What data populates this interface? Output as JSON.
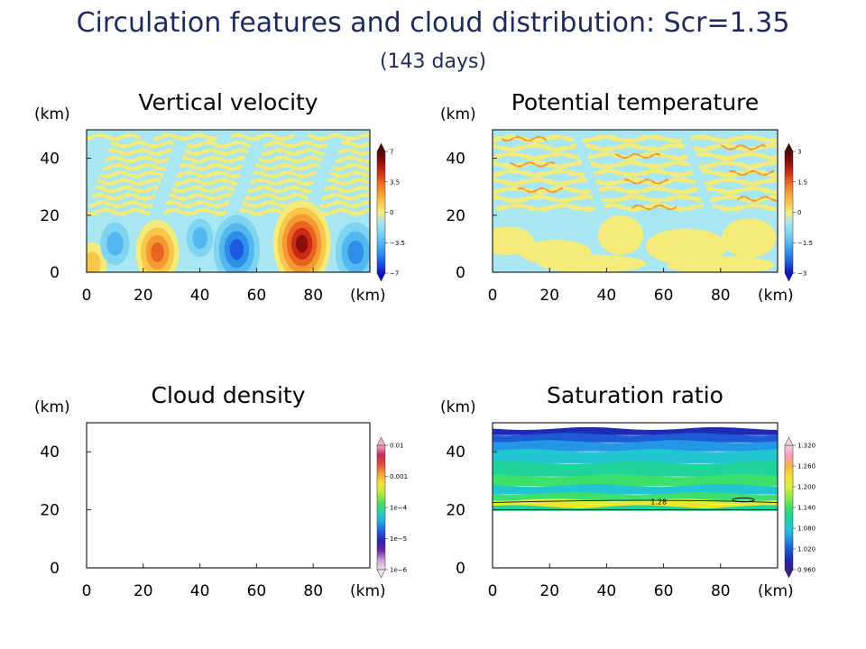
{
  "title": "Circulation features and cloud distribution: Scr=1.35",
  "subtitle": "(143 days)",
  "chart_data": [
    {
      "type": "heatmap",
      "title": "Vertical velocity",
      "xlabel": "(km)",
      "ylabel": "(km)",
      "xlim": [
        0,
        100
      ],
      "ylim": [
        0,
        50
      ],
      "xticks": [
        "0",
        "20",
        "40",
        "60",
        "80"
      ],
      "xtick_values": [
        0,
        20,
        40,
        60,
        80
      ],
      "yticks": [
        "0",
        "20",
        "40"
      ],
      "ytick_values": [
        0,
        20,
        40
      ],
      "colorbar": {
        "min": -7,
        "max": 7,
        "labels": [
          "7",
          "3.5",
          "0",
          "−3.5",
          "−7"
        ],
        "label_values": [
          7,
          3.5,
          0,
          -3.5,
          -7
        ]
      },
      "features": [
        {
          "kind": "updraft",
          "x": 25,
          "y": 7,
          "value": 4.5
        },
        {
          "kind": "updraft",
          "x": 76,
          "y": 10,
          "value": 7
        },
        {
          "kind": "updraft",
          "x": 2,
          "y": 3,
          "value": 2
        },
        {
          "kind": "downdraft",
          "x": 53,
          "y": 8,
          "value": -5
        },
        {
          "kind": "downdraft",
          "x": 95,
          "y": 7,
          "value": -4
        },
        {
          "kind": "downdraft",
          "x": 10,
          "y": 10,
          "value": -2
        },
        {
          "kind": "downdraft",
          "x": 40,
          "y": 12,
          "value": -1.5
        }
      ]
    },
    {
      "type": "heatmap",
      "title": "Potential temperature",
      "xlabel": "(km)",
      "ylabel": "(km)",
      "xlim": [
        0,
        100
      ],
      "ylim": [
        0,
        50
      ],
      "xticks": [
        "0",
        "20",
        "40",
        "60",
        "80"
      ],
      "xtick_values": [
        0,
        20,
        40,
        60,
        80
      ],
      "yticks": [
        "0",
        "20",
        "40"
      ],
      "ytick_values": [
        0,
        20,
        40
      ],
      "colorbar": {
        "min": -3,
        "max": 3,
        "labels": [
          "3",
          "1.5",
          "0",
          "−1.5",
          "−3"
        ],
        "label_values": [
          3,
          1.5,
          0,
          -1.5,
          -3
        ]
      }
    },
    {
      "type": "heatmap",
      "title": "Cloud density",
      "xlabel": "(km)",
      "ylabel": "(km)",
      "xlim": [
        0,
        100
      ],
      "ylim": [
        0,
        50
      ],
      "xticks": [
        "0",
        "20",
        "40",
        "60",
        "80"
      ],
      "xtick_values": [
        0,
        20,
        40,
        60,
        80
      ],
      "yticks": [
        "0",
        "20",
        "40"
      ],
      "ytick_values": [
        0,
        20,
        40
      ],
      "colorbar": {
        "scale": "log",
        "min": 1e-06,
        "max": 0.01,
        "labels": [
          "0.01",
          "0.001",
          "1e−4",
          "1e−5",
          "1e−6"
        ],
        "label_values": [
          0.01,
          0.001,
          0.0001,
          1e-05,
          1e-06
        ]
      }
    },
    {
      "type": "heatmap",
      "title": "Saturation ratio",
      "xlabel": "(km)",
      "ylabel": "(km)",
      "xlim": [
        0,
        100
      ],
      "ylim": [
        0,
        50
      ],
      "xticks": [
        "0",
        "20",
        "40",
        "60",
        "80"
      ],
      "xtick_values": [
        0,
        20,
        40,
        60,
        80
      ],
      "yticks": [
        "0",
        "20",
        "40"
      ],
      "ytick_values": [
        0,
        20,
        40
      ],
      "colorbar": {
        "min": 0.96,
        "max": 1.32,
        "labels": [
          "1.320",
          "1.260",
          "1.200",
          "1.140",
          "1.080",
          "1.020",
          "0.960"
        ],
        "label_values": [
          1.32,
          1.26,
          1.2,
          1.14,
          1.08,
          1.02,
          0.96
        ]
      },
      "contour_label": "1.28",
      "field_extent_km": [
        20,
        48
      ]
    }
  ]
}
